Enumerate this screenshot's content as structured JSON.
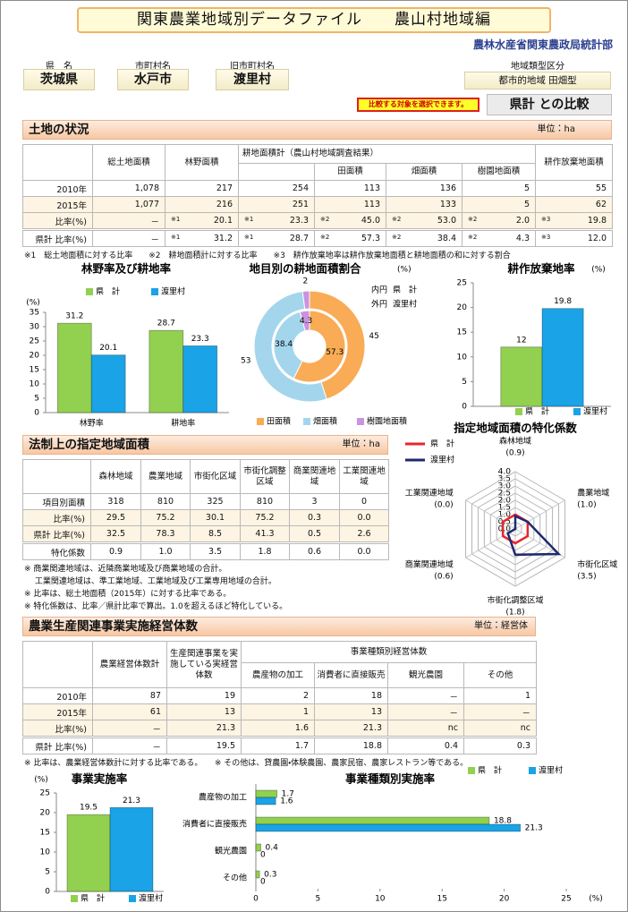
{
  "header": {
    "title": "関東農業地域別データファイル　　農山村地域編",
    "organization": "農林水産省関東農政局統計部",
    "fields": [
      {
        "label": "県　名",
        "value": "茨城県"
      },
      {
        "label": "市町村名",
        "value": "水戸市"
      },
      {
        "label": "旧市町村名",
        "value": "渡里村"
      },
      {
        "label": "地域類型区分",
        "value": "都市的地域 田畑型"
      }
    ],
    "notice": "比較する対象を選択できます。",
    "compare_button": "県計 との比較"
  },
  "land": {
    "title": "土地の状況",
    "unit": "単位：ha",
    "columns": [
      "総土地面積",
      "林野面積",
      "耕地面積計（農山村地域調査結果）",
      "田面積",
      "畑面積",
      "樹園地面積",
      "耕作放棄地面積"
    ],
    "rows": [
      {
        "label": "2010年",
        "cells": [
          "1,078",
          "217",
          "254",
          "113",
          "136",
          "5",
          "55"
        ]
      },
      {
        "label": "2015年",
        "cells": [
          "1,077",
          "216",
          "251",
          "113",
          "133",
          "5",
          "62"
        ]
      },
      {
        "label": "比率(%)",
        "cells": [
          "－",
          {
            "note": "※1",
            "value": "20.1"
          },
          {
            "note": "※1",
            "value": "23.3"
          },
          {
            "note": "※2",
            "value": "45.0"
          },
          {
            "note": "※2",
            "value": "53.0"
          },
          {
            "note": "※2",
            "value": "2.0"
          },
          {
            "note": "※3",
            "value": "19.8"
          }
        ]
      },
      {
        "label": "県計 比率(%)",
        "cells": [
          "－",
          {
            "note": "※1",
            "value": "31.2"
          },
          {
            "note": "※1",
            "value": "28.7"
          },
          {
            "note": "※2",
            "value": "57.3"
          },
          {
            "note": "※2",
            "value": "38.4"
          },
          {
            "note": "※2",
            "value": "4.3"
          },
          {
            "note": "※3",
            "value": "12.0"
          }
        ]
      }
    ],
    "note": "※1　総土地面積に対する比率　　※2　耕地面積計に対する比率　　※3　耕作放棄地率は耕作放棄地面積と耕地面積の和に対する割合"
  },
  "legal": {
    "title": "法制上の指定地域面積",
    "unit": "単位：ha",
    "columns": [
      "森林地域",
      "農業地域",
      "市街化区域",
      "市街化調整区域",
      "商業関連地域",
      "工業関連地域"
    ],
    "rows": [
      {
        "label": "項目別面積",
        "cells": [
          "318",
          "810",
          "325",
          "810",
          "3",
          "0"
        ]
      },
      {
        "label": "比率(%)",
        "cells": [
          "29.5",
          "75.2",
          "30.1",
          "75.2",
          "0.3",
          "0.0"
        ]
      },
      {
        "label": "県計 比率(%)",
        "cells": [
          "32.5",
          "78.3",
          "8.5",
          "41.3",
          "0.5",
          "2.6"
        ]
      },
      {
        "label": "特化係数",
        "cells": [
          "0.9",
          "1.0",
          "3.5",
          "1.8",
          "0.6",
          "0.0"
        ]
      }
    ],
    "notes": [
      "※ 商業関連地域は、近隣商業地域及び商業地域の合計。",
      "　 工業関連地域は、準工業地域、工業地域及び工業専用地域の合計。",
      "※ 比率は、総土地面積（2015年）に対する比率である。",
      "※ 特化係数は、比率／県計比率で算出。1.0を超えるほど特化している。"
    ]
  },
  "business": {
    "title": "農業生産関連事業実施経営体数",
    "unit": "単位：経営体",
    "columns": [
      "農業経営体数計",
      "生産関連事業を実施している実経営体数",
      "事業種類別経営体数",
      "農産物の加工",
      "消費者に直接販売",
      "観光農園",
      "その他"
    ],
    "rows": [
      {
        "label": "2010年",
        "cells": [
          "87",
          "19",
          "2",
          "18",
          "－",
          "1"
        ]
      },
      {
        "label": "2015年",
        "cells": [
          "61",
          "13",
          "1",
          "13",
          "－",
          "－"
        ]
      },
      {
        "label": "比率(%)",
        "cells": [
          "－",
          "21.3",
          "1.6",
          "21.3",
          "nc",
          "nc"
        ]
      },
      {
        "label": "県計 比率(%)",
        "cells": [
          "－",
          "19.5",
          "1.7",
          "18.8",
          "0.4",
          "0.3"
        ]
      }
    ],
    "notes": [
      "※ 比率は、農業経営体数計に対する比率である。　　※ その他は、貸農園・体験農園、農家民宿、農家レストラン等である。"
    ]
  },
  "chart_data": [
    {
      "type": "bar",
      "title": "林野率及び耕地率",
      "y_label": "(%)",
      "categories": [
        "林野率",
        "耕地率"
      ],
      "series": [
        {
          "name": "県　計",
          "color": "#92d050",
          "values": [
            31.2,
            28.7
          ]
        },
        {
          "name": "渡里村",
          "color": "#1aa3e6",
          "values": [
            20.1,
            23.3
          ]
        }
      ],
      "ylim": [
        0,
        35
      ],
      "yticks": [
        0,
        5,
        10,
        15,
        20,
        25,
        30,
        35
      ]
    },
    {
      "type": "donut",
      "title": "地目別の耕地面積割合",
      "unit": "(%)",
      "categories": [
        "田面積",
        "畑面積",
        "樹園地面積"
      ],
      "colors": [
        "#f9ab55",
        "#a3d6ec",
        "#c993e0"
      ],
      "series": [
        {
          "ring": "内円",
          "name": "県　計",
          "values": [
            57.3,
            38.4,
            4.3
          ]
        },
        {
          "ring": "外円",
          "name": "渡里村",
          "values": [
            45,
            53,
            2
          ]
        }
      ]
    },
    {
      "type": "bar",
      "title": "耕作放棄地率",
      "y_label": "(%)",
      "categories": [
        null
      ],
      "series": [
        {
          "name": "県　計",
          "color": "#92d050",
          "values": [
            12
          ]
        },
        {
          "name": "渡里村",
          "color": "#1aa3e6",
          "values": [
            19.8
          ]
        }
      ],
      "ylim": [
        0,
        25
      ],
      "yticks": [
        0,
        5,
        10,
        15,
        20,
        25
      ]
    },
    {
      "type": "radar",
      "title": "指定地域面積の特化係数",
      "categories": [
        "森林地域",
        "農業地域",
        "市街化区域",
        "市街化調整区域",
        "商業関連地域",
        "工業関連地域"
      ],
      "series": [
        {
          "name": "県　計",
          "color": "#e8262c",
          "values": [
            1,
            1,
            1,
            1,
            1,
            1
          ]
        },
        {
          "name": "渡里村",
          "color": "#1f2a6e",
          "values": [
            0.9,
            1,
            3.5,
            1.8,
            0.6,
            0
          ],
          "value_labels": [
            "(0.9)",
            "(1.0)",
            "(3.5)",
            "(1.8)",
            "(0.6)",
            "(0.0)"
          ]
        }
      ],
      "ylim": [
        0,
        4
      ],
      "yticks": [
        {
          "value": 0,
          "label": "0.0"
        },
        0.5,
        {
          "value": 1,
          "label": "1.0"
        },
        1.5,
        {
          "value": 2,
          "label": "2.0"
        },
        2.5,
        {
          "value": 3,
          "label": "3.0"
        },
        3.5,
        {
          "value": 4,
          "label": "4.0"
        }
      ]
    },
    {
      "type": "bar",
      "title": "事業実施率",
      "y_label": "(%)",
      "categories": [
        null
      ],
      "series": [
        {
          "name": "県　計",
          "color": "#92d050",
          "values": [
            19.5
          ]
        },
        {
          "name": "渡里村",
          "color": "#1aa3e6",
          "values": [
            21.3
          ]
        }
      ],
      "ylim": [
        0,
        25
      ],
      "yticks": [
        0,
        5,
        10,
        15,
        20,
        25
      ]
    },
    {
      "type": "hbar",
      "title": "事業種類別実施率",
      "x_label": "(%)",
      "categories": [
        "農産物の加工",
        "消費者に直接販売",
        "観光農園",
        "その他"
      ],
      "series": [
        {
          "name": "県　計",
          "color": "#92d050",
          "values": [
            1.7,
            18.8,
            0.4,
            0.3
          ]
        },
        {
          "name": "渡里村",
          "color": "#1aa3e6",
          "values": [
            1.6,
            21.3,
            0,
            0
          ]
        }
      ],
      "xlim": [
        0,
        25
      ],
      "xticks": [
        0,
        5,
        10,
        15,
        20,
        25
      ]
    }
  ]
}
